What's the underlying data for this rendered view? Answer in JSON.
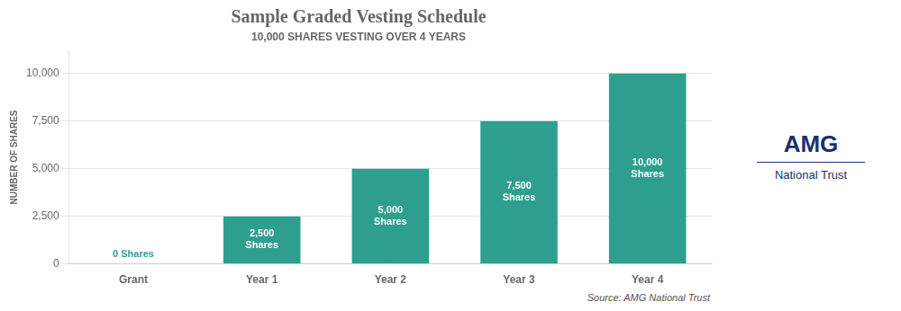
{
  "chart_data": {
    "type": "bar",
    "title": "Sample Graded Vesting Schedule",
    "subtitle": "10,000 SHARES VESTING OVER 4 YEARS",
    "categories": [
      "Grant",
      "Year 1",
      "Year 2",
      "Year 3",
      "Year 4"
    ],
    "values": [
      0,
      2500,
      5000,
      7500,
      10000
    ],
    "value_labels": [
      "0 Shares",
      "2,500\nShares",
      "5,000\nShares",
      "7,500\nShares",
      "10,000\nShares"
    ],
    "data_labels": true,
    "color": "#2E9E8F",
    "ylabel": "NUMBER OF SHARES",
    "ylim": [
      0,
      11200
    ],
    "yticks": [
      0,
      {
        "value": 2500,
        "label": "2,500"
      },
      {
        "value": 5000,
        "label": "5,000"
      },
      {
        "value": 7500,
        "label": "7,500"
      },
      {
        "value": 10000,
        "label": "10,000"
      }
    ],
    "grid": true,
    "annotations": [
      "Source: AMG National Trust",
      "AMG",
      "National Trust"
    ]
  }
}
